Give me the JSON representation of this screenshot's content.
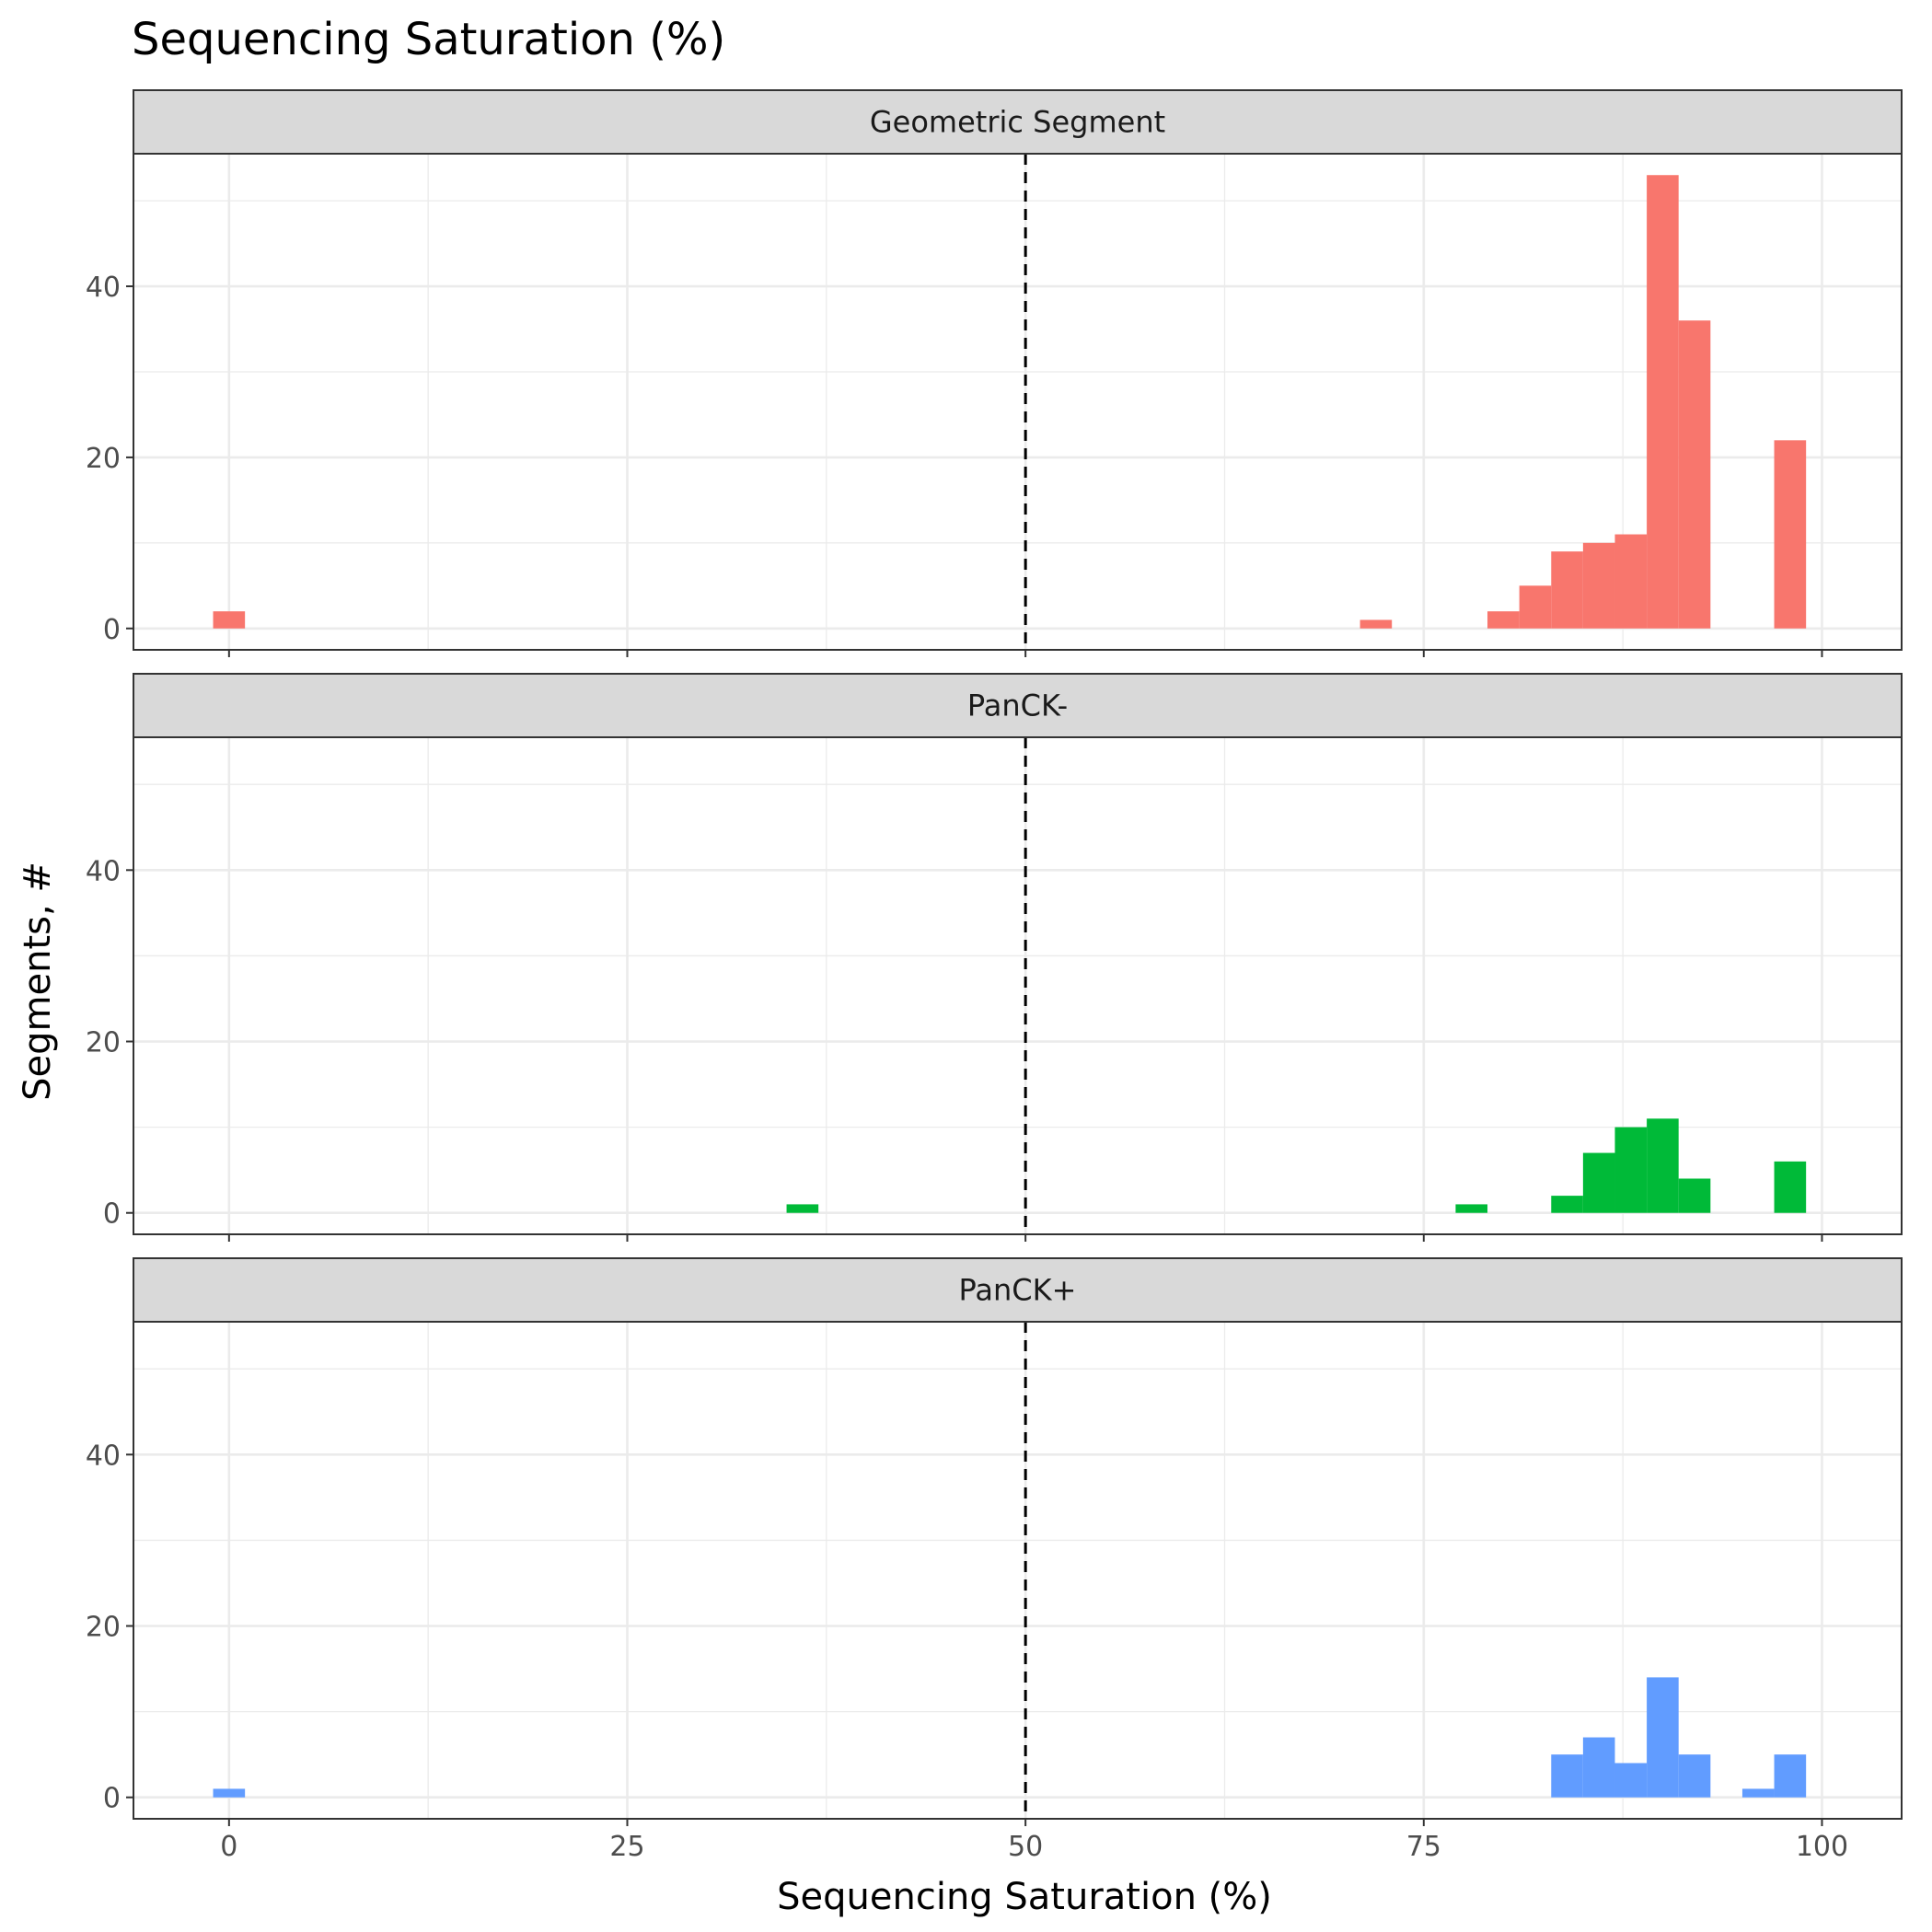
{
  "chart_data": {
    "type": "bar",
    "subtype": "histogram-facets",
    "title": "Sequencing Saturation (%)",
    "xlabel": "Sequencing Saturation (%)",
    "ylabel": "Segments, #",
    "xlim": [
      -6,
      105
    ],
    "ylim": [
      -2.5,
      55.5
    ],
    "x_ticks": [
      0,
      25,
      50,
      75,
      100
    ],
    "y_ticks": [
      0,
      20,
      40
    ],
    "bin_width": 2,
    "threshold_line": {
      "x": 50,
      "style": "dashed",
      "color": "#000000"
    },
    "grid": true,
    "legend": "none",
    "facets": [
      {
        "name": "Geometric Segment",
        "color": "#F8766D",
        "bins": [
          {
            "x": 0,
            "count": 2
          },
          {
            "x": 72,
            "count": 1
          },
          {
            "x": 80,
            "count": 2
          },
          {
            "x": 82,
            "count": 5
          },
          {
            "x": 84,
            "count": 9
          },
          {
            "x": 86,
            "count": 10
          },
          {
            "x": 88,
            "count": 11
          },
          {
            "x": 90,
            "count": 53
          },
          {
            "x": 92,
            "count": 36
          },
          {
            "x": 98,
            "count": 22
          }
        ]
      },
      {
        "name": "PanCK-",
        "color": "#00BA38",
        "bins": [
          {
            "x": 36,
            "count": 1
          },
          {
            "x": 78,
            "count": 1
          },
          {
            "x": 84,
            "count": 2
          },
          {
            "x": 86,
            "count": 7
          },
          {
            "x": 88,
            "count": 10
          },
          {
            "x": 90,
            "count": 11
          },
          {
            "x": 92,
            "count": 4
          },
          {
            "x": 98,
            "count": 6
          }
        ]
      },
      {
        "name": "PanCK+",
        "color": "#619CFF",
        "bins": [
          {
            "x": 0,
            "count": 1
          },
          {
            "x": 84,
            "count": 5
          },
          {
            "x": 86,
            "count": 7
          },
          {
            "x": 88,
            "count": 4
          },
          {
            "x": 90,
            "count": 14
          },
          {
            "x": 92,
            "count": 5
          },
          {
            "x": 96,
            "count": 1
          },
          {
            "x": 98,
            "count": 5
          }
        ]
      }
    ]
  }
}
